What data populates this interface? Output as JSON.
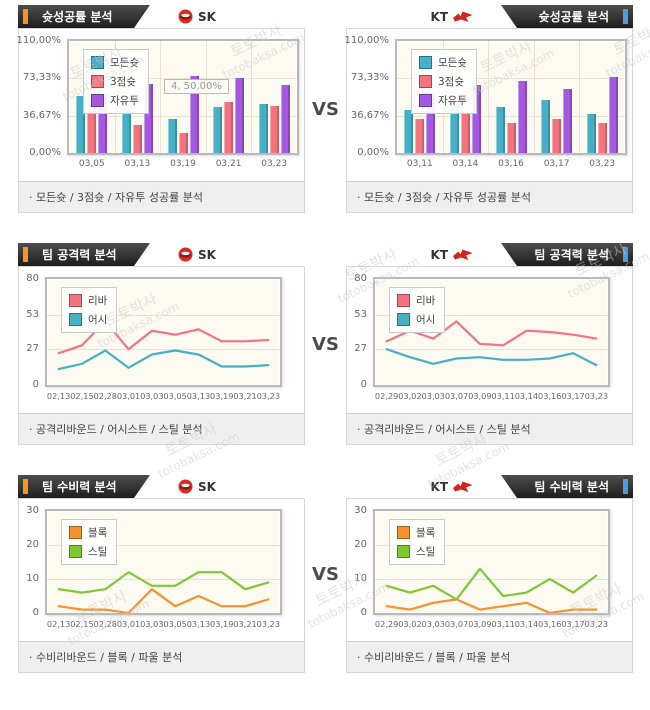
{
  "page": {
    "vs": "VS"
  },
  "watermark": {
    "line1": "토토박사",
    "line2": "totobaksa.com"
  },
  "chart_data": [
    {
      "panel_title": "슛성공률 분석",
      "team": "SK",
      "type": "bar",
      "caption": "· 모든슛 / 3점슛 / 자유투 성공률 분석",
      "categories": [
        "03,05",
        "03,13",
        "03,19",
        "03,21",
        "03,23"
      ],
      "series": [
        {
          "name": "모든슛",
          "color": "#45b0c6",
          "values": [
            56,
            42,
            33,
            45,
            48
          ]
        },
        {
          "name": "3점슛",
          "color": "#f5737f",
          "values": [
            55,
            28,
            20,
            50,
            46
          ]
        },
        {
          "name": "자유투",
          "color": "#a558e0",
          "values": [
            58,
            68,
            76,
            74,
            67
          ]
        }
      ],
      "ylim": [
        0,
        110
      ],
      "yticks": [
        {
          "label": "110,00%",
          "value": 110
        },
        {
          "label": "73,33%",
          "value": 73.33
        },
        {
          "label": "36,67%",
          "value": 36.67
        },
        {
          "label": "0,00%",
          "value": 0
        }
      ],
      "tooltip": "4, 50,00%",
      "legend_position": "top-left",
      "grid": true
    },
    {
      "panel_title": "슛성공률 분석",
      "team": "KT",
      "type": "bar",
      "caption": "· 모든슛 / 3점슛 / 자유투 성공률 분석",
      "categories": [
        "03,11",
        "03,14",
        "03,16",
        "03,17",
        "03,23"
      ],
      "series": [
        {
          "name": "모든슛",
          "color": "#45b0c6",
          "values": [
            42,
            46,
            45,
            52,
            38
          ]
        },
        {
          "name": "3점슛",
          "color": "#f5737f",
          "values": [
            33,
            38,
            29,
            33,
            29
          ]
        },
        {
          "name": "자유투",
          "color": "#a558e0",
          "values": [
            59,
            67,
            71,
            63,
            75
          ]
        }
      ],
      "ylim": [
        0,
        110
      ],
      "yticks": [
        {
          "label": "110,00%",
          "value": 110
        },
        {
          "label": "73,33%",
          "value": 73.33
        },
        {
          "label": "36,67%",
          "value": 36.67
        },
        {
          "label": "0,00%",
          "value": 0
        }
      ],
      "legend_position": "top-left",
      "grid": true
    },
    {
      "panel_title": "팀 공격력 분석",
      "team": "SK",
      "type": "line",
      "caption": "· 공격리바운드 / 어시스트 / 스틸 분석",
      "categories": [
        "02,13",
        "02,15",
        "02,28",
        "03,01",
        "03,03",
        "03,05",
        "03,13",
        "03,19",
        "03,21",
        "03,23"
      ],
      "series": [
        {
          "name": "리바",
          "color": "#f5737f",
          "values": [
            24,
            30,
            48,
            27,
            41,
            38,
            42,
            33,
            33,
            34
          ]
        },
        {
          "name": "어시",
          "color": "#45b0c6",
          "values": [
            12,
            16,
            26,
            13,
            23,
            26,
            23,
            14,
            14,
            15
          ]
        }
      ],
      "ylim": [
        0,
        80
      ],
      "yticks": [
        {
          "label": "80",
          "value": 80
        },
        {
          "label": "53",
          "value": 53
        },
        {
          "label": "27",
          "value": 27
        },
        {
          "label": "0",
          "value": 0
        }
      ],
      "legend_position": "top-left",
      "grid": true
    },
    {
      "panel_title": "팀 공격력 분석",
      "team": "KT",
      "type": "line",
      "caption": "· 공격리바운드 / 어시스트 / 스틸 분석",
      "categories": [
        "02,29",
        "03,02",
        "03,03",
        "03,07",
        "03,09",
        "03,11",
        "03,14",
        "03,16",
        "03,17",
        "03,23"
      ],
      "series": [
        {
          "name": "리바",
          "color": "#f5737f",
          "values": [
            33,
            41,
            35,
            48,
            31,
            30,
            41,
            40,
            38,
            35
          ]
        },
        {
          "name": "어시",
          "color": "#45b0c6",
          "values": [
            27,
            21,
            16,
            20,
            21,
            19,
            19,
            20,
            24,
            15
          ]
        }
      ],
      "ylim": [
        0,
        80
      ],
      "yticks": [
        {
          "label": "80",
          "value": 80
        },
        {
          "label": "53",
          "value": 53
        },
        {
          "label": "27",
          "value": 27
        },
        {
          "label": "0",
          "value": 0
        }
      ],
      "legend_position": "top-left",
      "grid": true
    },
    {
      "panel_title": "팀 수비력 분석",
      "team": "SK",
      "type": "line",
      "caption": "· 수비리바운드 / 블록 / 파울 분석",
      "categories": [
        "02,13",
        "02,15",
        "02,28",
        "03,01",
        "03,03",
        "03,05",
        "03,13",
        "03,19",
        "03,21",
        "03,23"
      ],
      "series": [
        {
          "name": "블록",
          "color": "#f6912f",
          "values": [
            2,
            1,
            1,
            0,
            7,
            2,
            5,
            2,
            2,
            4
          ]
        },
        {
          "name": "스틸",
          "color": "#7ec832",
          "values": [
            7,
            6,
            7,
            12,
            8,
            8,
            12,
            12,
            7,
            9
          ]
        }
      ],
      "ylim": [
        0,
        30
      ],
      "yticks": [
        {
          "label": "30",
          "value": 30
        },
        {
          "label": "20",
          "value": 20
        },
        {
          "label": "10",
          "value": 10
        },
        {
          "label": "0",
          "value": 0
        }
      ],
      "legend_position": "top-left",
      "grid": true
    },
    {
      "panel_title": "팀 수비력 분석",
      "team": "KT",
      "type": "line",
      "caption": "· 수비리바운드 / 블록 / 파울 분석",
      "categories": [
        "02,29",
        "03,02",
        "03,03",
        "03,07",
        "03,09",
        "03,11",
        "03,14",
        "03,16",
        "03,17",
        "03,23"
      ],
      "series": [
        {
          "name": "블록",
          "color": "#f6912f",
          "values": [
            2,
            1,
            3,
            4,
            1,
            2,
            3,
            0,
            1,
            1
          ]
        },
        {
          "name": "스틸",
          "color": "#7ec832",
          "values": [
            8,
            6,
            8,
            4,
            13,
            5,
            6,
            10,
            6,
            11
          ]
        }
      ],
      "ylim": [
        0,
        30
      ],
      "yticks": [
        {
          "label": "30",
          "value": 30
        },
        {
          "label": "20",
          "value": 20
        },
        {
          "label": "10",
          "value": 10
        },
        {
          "label": "0",
          "value": 0
        }
      ],
      "legend_position": "top-left",
      "grid": true
    }
  ]
}
